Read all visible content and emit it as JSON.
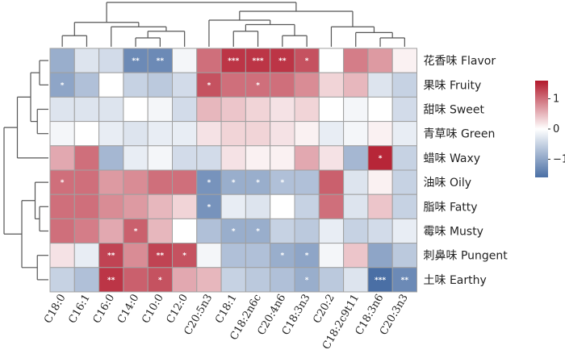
{
  "chart_data": {
    "type": "heatmap",
    "title": "",
    "columns": [
      "C18:0",
      "C16:1",
      "C16:0",
      "C14:0",
      "C10:0",
      "C12:0",
      "C20:5n3",
      "C18:1",
      "C18:2n6c",
      "C20:4n6",
      "C18:3n3",
      "C20:2",
      "C18:2c9t11",
      "C18:3n6",
      "C20:3n3"
    ],
    "rows": [
      "花香味 Flavor",
      "果味 Fruity",
      "甜味 Sweet",
      "青草味 Green",
      "蜡味 Waxy",
      "油味 Oily",
      "脂味 Fatty",
      "霉味 Musty",
      "刺鼻味 Pungent",
      "土味 Earthy"
    ],
    "values": [
      [
        -0.9,
        -0.3,
        -0.4,
        -1.3,
        -1.3,
        -0.1,
        1.0,
        1.4,
        1.4,
        1.4,
        1.2,
        0.0,
        0.9,
        0.7,
        0.1
      ],
      [
        -1.0,
        -0.7,
        0.0,
        -0.5,
        -0.6,
        -0.4,
        1.2,
        1.0,
        1.0,
        1.0,
        0.8,
        0.3,
        0.5,
        -0.3,
        -0.5
      ],
      [
        -0.3,
        -0.3,
        -0.3,
        0.0,
        -0.1,
        -0.4,
        0.5,
        0.4,
        0.3,
        0.2,
        0.3,
        0.0,
        -0.1,
        0.0,
        -0.4
      ],
      [
        -0.1,
        0.0,
        -0.2,
        -0.3,
        -0.2,
        -0.2,
        0.2,
        0.3,
        0.3,
        0.2,
        0.1,
        -0.2,
        -0.1,
        0.1,
        -0.2
      ],
      [
        0.6,
        1.0,
        -0.8,
        -0.2,
        -0.1,
        -0.4,
        -0.4,
        0.2,
        0.1,
        0.1,
        0.6,
        0.2,
        -0.8,
        1.5,
        -0.5
      ],
      [
        1.0,
        1.0,
        0.7,
        0.8,
        1.0,
        1.0,
        -1.2,
        -0.9,
        -0.9,
        -0.7,
        -0.7,
        1.1,
        -0.3,
        0.1,
        -0.5
      ],
      [
        1.0,
        1.0,
        0.8,
        0.7,
        0.5,
        0.3,
        -1.2,
        -0.2,
        -0.3,
        0.0,
        -0.5,
        1.0,
        -0.3,
        0.4,
        -0.5
      ],
      [
        1.0,
        0.9,
        0.6,
        1.1,
        0.5,
        0.0,
        -0.7,
        -0.9,
        -0.9,
        -0.5,
        -0.6,
        -0.2,
        -0.5,
        -0.4,
        -0.2
      ],
      [
        0.2,
        -0.2,
        1.3,
        0.8,
        1.3,
        1.2,
        -0.1,
        -0.7,
        -0.7,
        -0.9,
        -1.0,
        -0.1,
        0.4,
        -1.0,
        -0.6
      ],
      [
        -0.5,
        -0.7,
        1.4,
        1.1,
        1.2,
        0.6,
        0.5,
        -0.5,
        -0.6,
        -0.7,
        -0.9,
        -0.6,
        -0.3,
        -1.6,
        -1.3
      ]
    ],
    "significance": [
      [
        "",
        "",
        "",
        "**",
        "**",
        "",
        "",
        "***",
        "***",
        "**",
        "*",
        "",
        "",
        "",
        ""
      ],
      [
        "*",
        "",
        "",
        "",
        "",
        "",
        "*",
        "",
        "*",
        "",
        "",
        "",
        "",
        "",
        ""
      ],
      [
        "",
        "",
        "",
        "",
        "",
        "",
        "",
        "",
        "",
        "",
        "",
        "",
        "",
        "",
        ""
      ],
      [
        "",
        "",
        "",
        "",
        "",
        "",
        "",
        "",
        "",
        "",
        "",
        "",
        "",
        "",
        ""
      ],
      [
        "",
        "",
        "",
        "",
        "",
        "",
        "",
        "",
        "",
        "",
        "",
        "",
        "",
        "*",
        ""
      ],
      [
        "*",
        "",
        "",
        "",
        "",
        "",
        "*",
        "*",
        "*",
        "*",
        "",
        "",
        "",
        "",
        ""
      ],
      [
        "",
        "",
        "",
        "",
        "",
        "",
        "*",
        "",
        "",
        "",
        "",
        "",
        "",
        "",
        ""
      ],
      [
        "",
        "",
        "",
        "*",
        "",
        "",
        "",
        "*",
        "*",
        "",
        "",
        "",
        "",
        "",
        ""
      ],
      [
        "",
        "",
        "**",
        "",
        "**",
        "*",
        "",
        "",
        "",
        "*",
        "*",
        "",
        "",
        "",
        ""
      ],
      [
        "",
        "",
        "**",
        "",
        "*",
        "",
        "",
        "",
        "",
        "",
        "*",
        "",
        "",
        "***",
        "**"
      ]
    ],
    "colorbar": {
      "ticks": [
        1,
        0,
        -1
      ],
      "tick_labels": [
        "1",
        "0",
        "−1"
      ],
      "range": [
        -1.6,
        1.6
      ]
    },
    "colors": {
      "low": "#4a6fa5",
      "mid": "#ffffff",
      "high": "#b2182b",
      "grid": "#a0a0a0",
      "dendrogram": "#555555"
    }
  }
}
